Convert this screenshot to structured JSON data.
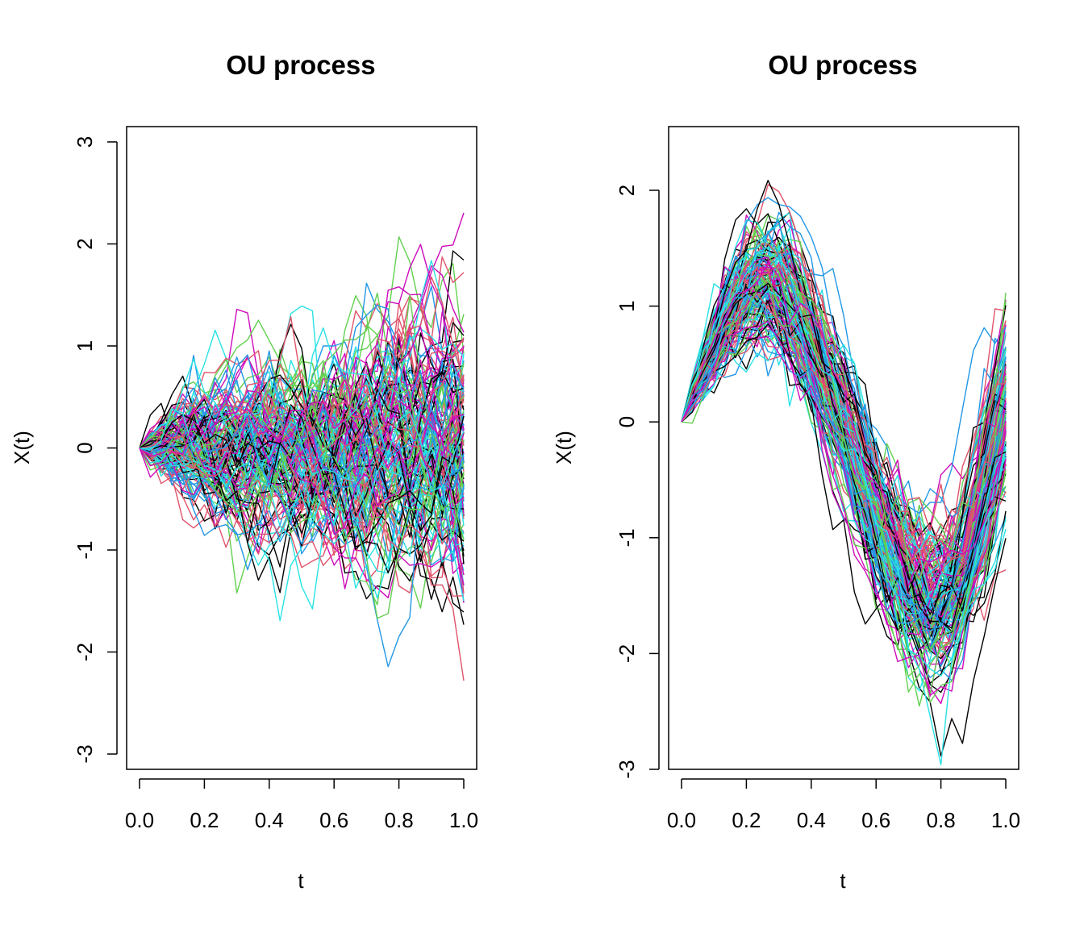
{
  "chart_data": [
    {
      "type": "line",
      "title": "OU process",
      "xlabel": "t",
      "ylabel": "X(t)",
      "xlim": [
        0,
        1
      ],
      "ylim": [
        -3.15,
        3.15
      ],
      "xticks": [
        0,
        0.2,
        0.4,
        0.6,
        0.8,
        1
      ],
      "xtick_labels": [
        "0.0",
        "0.2",
        "0.4",
        "0.6",
        "0.8",
        "1.0"
      ],
      "yticks": [
        -3,
        -2,
        -1,
        0,
        1,
        2,
        3
      ],
      "ytick_labels": [
        "-3",
        "-2",
        "-1",
        "0",
        "1",
        "2",
        "3"
      ],
      "grid": false,
      "legend": "none",
      "palette": [
        "#000000",
        "#DF536B",
        "#61D04F",
        "#2297E6",
        "#28E2E5",
        "#CD0BBC"
      ],
      "n_series": 150,
      "time_points": 31,
      "x": [
        0,
        0.0333,
        0.0667,
        0.1,
        0.1333,
        0.1667,
        0.2,
        0.2333,
        0.2667,
        0.3,
        0.3333,
        0.3667,
        0.4,
        0.4333,
        0.4667,
        0.5,
        0.5333,
        0.5667,
        0.6,
        0.6333,
        0.6667,
        0.7,
        0.7333,
        0.7667,
        0.8,
        0.8333,
        0.8667,
        0.9,
        0.9333,
        0.9667,
        1
      ],
      "mean": [
        0,
        0,
        0,
        0,
        0,
        0,
        0,
        0,
        0,
        0,
        0,
        0,
        0,
        0,
        0,
        0,
        0,
        0,
        0,
        0,
        0,
        0,
        0,
        0,
        0,
        0,
        0,
        0,
        0,
        0,
        0
      ],
      "sd": [
        0,
        0.13,
        0.18,
        0.22,
        0.25,
        0.28,
        0.3,
        0.32,
        0.34,
        0.36,
        0.38,
        0.4,
        0.41,
        0.43,
        0.44,
        0.45,
        0.46,
        0.48,
        0.49,
        0.5,
        0.51,
        0.52,
        0.53,
        0.54,
        0.55,
        0.56,
        0.57,
        0.58,
        0.59,
        0.6,
        0.61
      ]
    },
    {
      "type": "line",
      "title": "OU process",
      "xlabel": "t",
      "ylabel": "X(t)",
      "xlim": [
        0,
        1
      ],
      "ylim": [
        -3.0,
        2.55
      ],
      "xticks": [
        0,
        0.2,
        0.4,
        0.6,
        0.8,
        1
      ],
      "xtick_labels": [
        "0.0",
        "0.2",
        "0.4",
        "0.6",
        "0.8",
        "1.0"
      ],
      "yticks": [
        -3,
        -2,
        -1,
        0,
        1,
        2
      ],
      "ytick_labels": [
        "-3",
        "-2",
        "-1",
        "0",
        "1",
        "2"
      ],
      "grid": false,
      "legend": "none",
      "palette": [
        "#000000",
        "#DF536B",
        "#61D04F",
        "#2297E6",
        "#28E2E5",
        "#CD0BBC"
      ],
      "n_series": 150,
      "time_points": 31,
      "x": [
        0,
        0.0333,
        0.0667,
        0.1,
        0.1333,
        0.1667,
        0.2,
        0.2333,
        0.2667,
        0.3,
        0.3333,
        0.3667,
        0.4,
        0.4333,
        0.4667,
        0.5,
        0.5333,
        0.5667,
        0.6,
        0.6333,
        0.6667,
        0.7,
        0.7333,
        0.7667,
        0.8,
        0.8333,
        0.8667,
        0.9,
        0.9333,
        0.9667,
        1
      ],
      "mean": [
        0,
        0.25,
        0.45,
        0.65,
        0.85,
        1.0,
        1.12,
        1.18,
        1.2,
        1.15,
        1.05,
        0.9,
        0.7,
        0.45,
        0.2,
        -0.05,
        -0.3,
        -0.55,
        -0.8,
        -1.05,
        -1.25,
        -1.45,
        -1.55,
        -1.62,
        -1.6,
        -1.5,
        -1.3,
        -1.0,
        -0.65,
        -0.3,
        0.05
      ],
      "sd": [
        0,
        0.1,
        0.15,
        0.18,
        0.2,
        0.22,
        0.24,
        0.25,
        0.26,
        0.27,
        0.28,
        0.28,
        0.29,
        0.29,
        0.3,
        0.3,
        0.3,
        0.31,
        0.31,
        0.31,
        0.32,
        0.32,
        0.32,
        0.33,
        0.33,
        0.33,
        0.34,
        0.34,
        0.35,
        0.36,
        0.37
      ]
    }
  ]
}
